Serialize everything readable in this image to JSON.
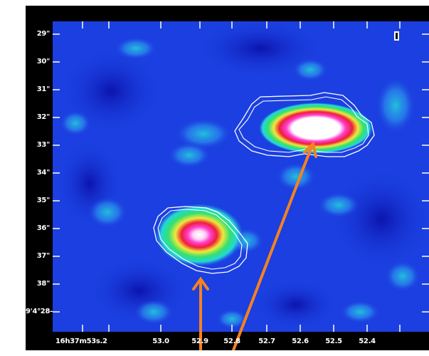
{
  "image": {
    "description_tokens": {
      "scale_bar_glyph": "I"
    },
    "y_axis_labels": [
      "29\"",
      "30\"",
      "31\"",
      "32\"",
      "33\"",
      "34\"",
      "35\"",
      "36\"",
      "37\"",
      "38\"",
      "-4°28'39\""
    ],
    "x_axis_labels": [
      "16h37m53s.2",
      "53.0",
      "52.9",
      "52.8",
      "52.7",
      "52.6",
      "52.5",
      "52.4"
    ],
    "colors": {
      "background_map": "#1b3fe0",
      "deep_blue": "#0f1ec8",
      "light_blue": "#2d7bf0",
      "cyan": "#22d7d8",
      "green": "#34e070",
      "yellow": "#f0e83a",
      "red": "#ee1e3a",
      "magenta": "#ff3fd0",
      "white": "#ffffff",
      "arrow": "#f5821f",
      "frame": "#000000"
    },
    "sources": [
      {
        "id": "upper-right",
        "peak": "white"
      },
      {
        "id": "lower-left",
        "peak": "white-magenta"
      }
    ]
  }
}
